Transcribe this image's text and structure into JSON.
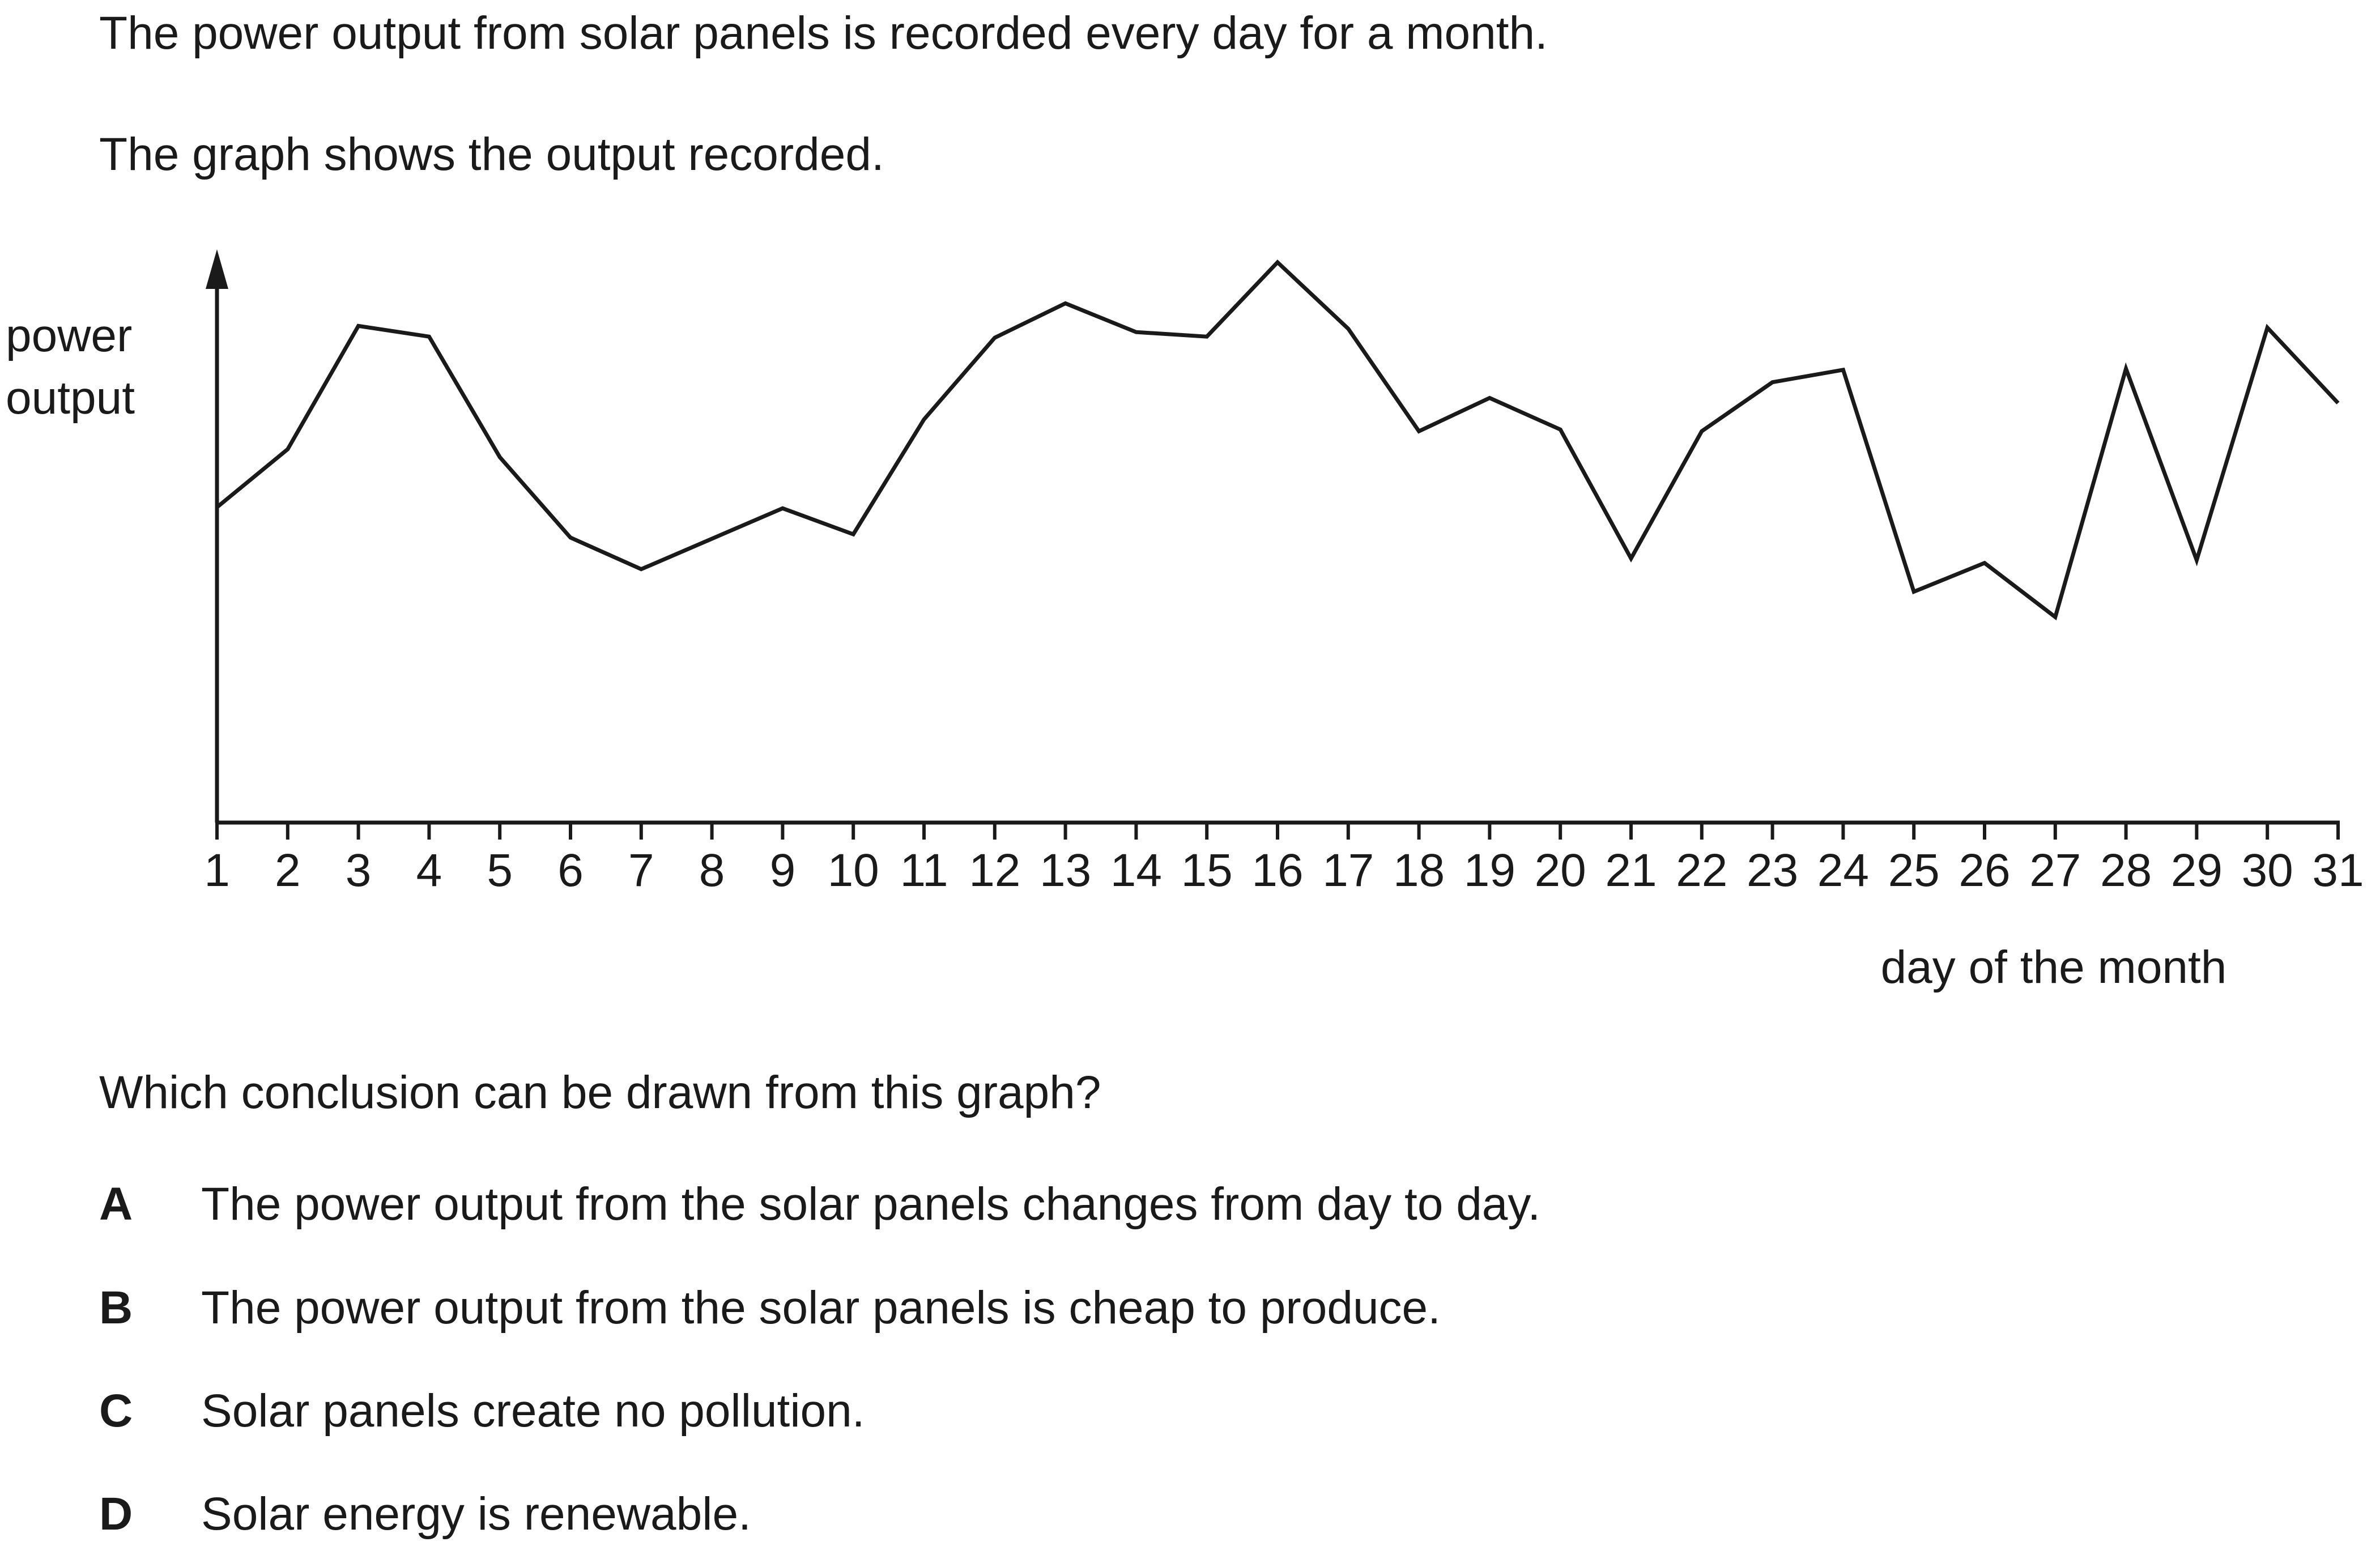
{
  "intro": {
    "line1": "The power output from solar panels is recorded every day for a month.",
    "line2": "The graph shows the output recorded."
  },
  "question": "Which conclusion can be drawn from this graph?",
  "options": [
    {
      "letter": "A",
      "text": "The power output from the solar panels changes from day to day."
    },
    {
      "letter": "B",
      "text": "The power output from the solar panels is cheap to produce."
    },
    {
      "letter": "C",
      "text": "Solar panels create no pollution."
    },
    {
      "letter": "D",
      "text": "Solar energy is renewable."
    }
  ],
  "chart_data": {
    "type": "line",
    "title": "",
    "xlabel": "day of the month",
    "ylabel": "power output",
    "ylabel_lines": [
      "power",
      "output"
    ],
    "x": [
      1,
      2,
      3,
      4,
      5,
      6,
      7,
      8,
      9,
      10,
      11,
      12,
      13,
      14,
      15,
      16,
      17,
      18,
      19,
      20,
      21,
      22,
      23,
      24,
      25,
      26,
      27,
      28,
      29,
      30,
      31
    ],
    "y": [
      56.0,
      66.3,
      88.2,
      86.3,
      64.9,
      50.6,
      45.0,
      50.4,
      55.8,
      51.2,
      71.6,
      86.1,
      92.2,
      87.1,
      86.3,
      99.5,
      87.7,
      69.5,
      75.4,
      69.8,
      46.9,
      69.5,
      78.2,
      80.4,
      41.0,
      46.1,
      36.5,
      80.6,
      46.6,
      87.9,
      74.5
    ],
    "ylim": [
      0,
      100
    ],
    "y_tick_labels": false,
    "grid": false,
    "line_color": "#1a1a1a"
  }
}
